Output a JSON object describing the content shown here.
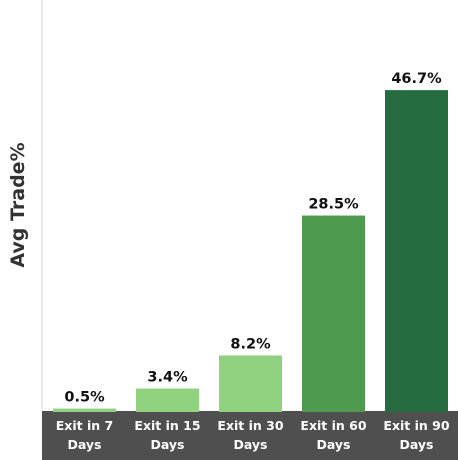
{
  "chart_data": {
    "type": "bar",
    "title": "",
    "xlabel": "",
    "ylabel": "Avg Trade%",
    "ylim": [
      0,
      50
    ],
    "grid": false,
    "categories": [
      [
        "Exit in 7",
        "Days"
      ],
      [
        "Exit in 15",
        "Days"
      ],
      [
        "Exit in 30",
        "Days"
      ],
      [
        "Exit in 60",
        "Days"
      ],
      [
        "Exit in 90",
        "Days"
      ]
    ],
    "values": [
      0.5,
      3.4,
      8.2,
      28.5,
      46.7
    ],
    "data_labels": [
      "0.5%",
      "3.4%",
      "8.2%",
      "28.5%",
      "46.7%"
    ],
    "bar_colors": [
      "#8fd17f",
      "#8fd17f",
      "#8fd17f",
      "#4e9a4f",
      "#276b40"
    ],
    "axis_band_color": "#4f4f4f",
    "axis_line_color": "#d6d6d6"
  }
}
